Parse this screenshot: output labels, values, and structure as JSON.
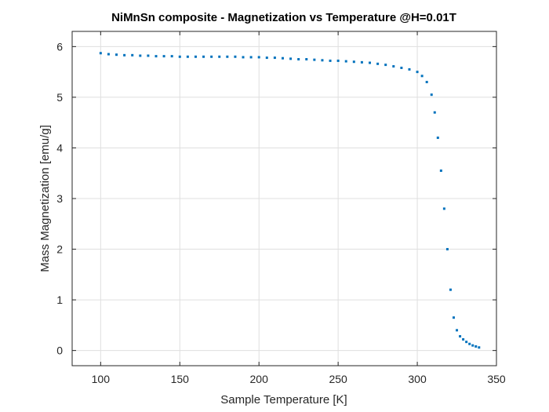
{
  "chart_data": {
    "type": "scatter",
    "title": "NiMnSn composite - Magnetization vs Temperature @H=0.01T",
    "xlabel": "Sample Temperature [K]",
    "ylabel": "Mass Magnetization [emu/g]",
    "xlim": [
      82,
      350
    ],
    "ylim": [
      -0.3,
      6.3
    ],
    "xticks": [
      "100",
      "150",
      "200",
      "250",
      "300",
      "350"
    ],
    "yticks": [
      "0",
      "1",
      "2",
      "3",
      "4",
      "5",
      "6"
    ],
    "grid": true,
    "marker_color": "#0072BD",
    "series": [
      {
        "x": [
          100,
          105,
          110,
          115,
          120,
          125,
          130,
          135,
          140,
          145,
          150,
          155,
          160,
          165,
          170,
          175,
          180,
          185,
          190,
          195,
          200,
          205,
          210,
          215,
          220,
          225,
          230,
          235,
          240,
          245,
          250,
          255,
          260,
          265,
          270,
          275,
          280,
          285,
          290,
          295,
          300,
          303,
          306,
          309,
          311,
          313,
          315,
          317,
          319,
          321,
          323,
          325,
          327,
          329,
          331,
          333,
          335,
          337,
          339
        ],
        "y": [
          5.87,
          5.85,
          5.84,
          5.83,
          5.83,
          5.82,
          5.82,
          5.81,
          5.81,
          5.81,
          5.8,
          5.8,
          5.8,
          5.8,
          5.8,
          5.8,
          5.8,
          5.8,
          5.79,
          5.79,
          5.79,
          5.78,
          5.78,
          5.77,
          5.76,
          5.75,
          5.75,
          5.74,
          5.73,
          5.72,
          5.72,
          5.71,
          5.7,
          5.69,
          5.68,
          5.66,
          5.64,
          5.61,
          5.58,
          5.55,
          5.5,
          5.42,
          5.3,
          5.05,
          4.7,
          4.2,
          3.55,
          2.8,
          2.0,
          1.2,
          0.65,
          0.4,
          0.28,
          0.22,
          0.17,
          0.13,
          0.1,
          0.08,
          0.06
        ]
      }
    ]
  }
}
